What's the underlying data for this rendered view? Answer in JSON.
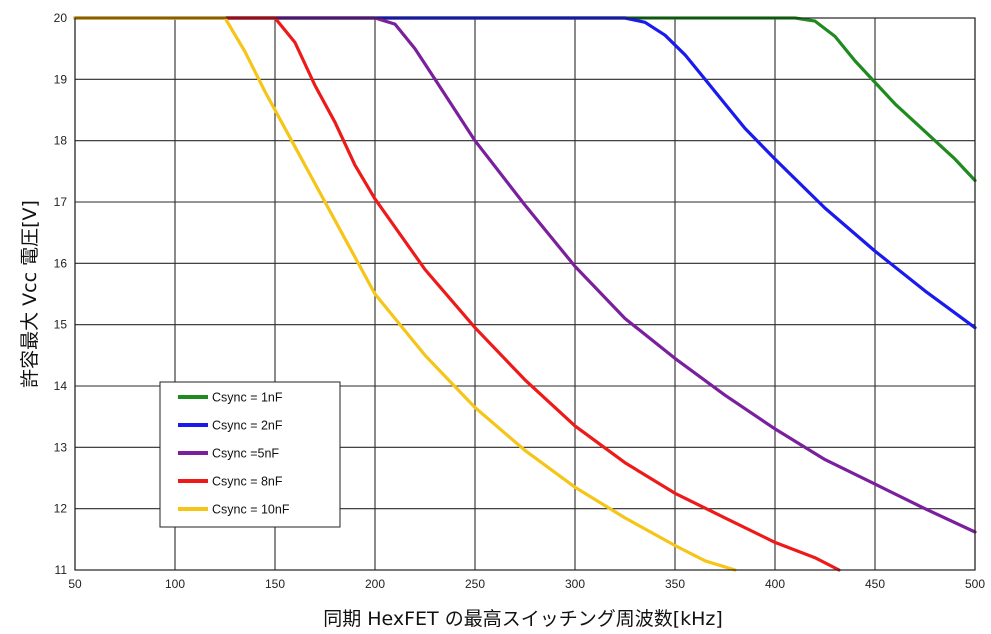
{
  "chart_data": {
    "type": "line",
    "xlabel": "同期 HexFET の最高スイッチング周波数[kHz]",
    "ylabel": "許容最大 Vcc 電圧[V]",
    "xlim": [
      50,
      500
    ],
    "ylim": [
      11,
      20
    ],
    "x_ticks": [
      50,
      100,
      150,
      200,
      250,
      300,
      350,
      400,
      450,
      500
    ],
    "y_ticks": [
      11,
      12,
      13,
      14,
      15,
      16,
      17,
      18,
      19,
      20
    ],
    "grid": true,
    "legend_position": "lower-left",
    "series": [
      {
        "name": "Csync = 1nF",
        "color": "#1f8a1f",
        "points": [
          [
            50,
            20
          ],
          [
            400,
            20
          ],
          [
            410,
            20
          ],
          [
            420,
            19.95
          ],
          [
            430,
            19.7
          ],
          [
            440,
            19.3
          ],
          [
            450,
            18.95
          ],
          [
            460,
            18.6
          ],
          [
            470,
            18.3
          ],
          [
            480,
            18.0
          ],
          [
            490,
            17.7
          ],
          [
            500,
            17.35
          ]
        ]
      },
      {
        "name": "Csync = 2nF",
        "color": "#1a1aee",
        "points": [
          [
            50,
            20
          ],
          [
            325,
            20
          ],
          [
            335,
            19.93
          ],
          [
            345,
            19.72
          ],
          [
            355,
            19.4
          ],
          [
            365,
            19.0
          ],
          [
            375,
            18.6
          ],
          [
            385,
            18.2
          ],
          [
            400,
            17.7
          ],
          [
            425,
            16.9
          ],
          [
            450,
            16.2
          ],
          [
            475,
            15.55
          ],
          [
            500,
            14.95
          ]
        ]
      },
      {
        "name": "Csync =5nF",
        "color": "#7a1f9e",
        "points": [
          [
            50,
            20
          ],
          [
            200,
            20
          ],
          [
            210,
            19.9
          ],
          [
            220,
            19.5
          ],
          [
            230,
            19.0
          ],
          [
            240,
            18.5
          ],
          [
            250,
            18.0
          ],
          [
            275,
            16.95
          ],
          [
            300,
            15.95
          ],
          [
            325,
            15.1
          ],
          [
            350,
            14.45
          ],
          [
            375,
            13.85
          ],
          [
            400,
            13.3
          ],
          [
            425,
            12.8
          ],
          [
            450,
            12.4
          ],
          [
            475,
            12.0
          ],
          [
            500,
            11.62
          ]
        ]
      },
      {
        "name": "Csync = 8nF",
        "color": "#ee1a1a",
        "points": [
          [
            50,
            20
          ],
          [
            150,
            20
          ],
          [
            160,
            19.6
          ],
          [
            170,
            18.9
          ],
          [
            180,
            18.3
          ],
          [
            190,
            17.6
          ],
          [
            200,
            17.05
          ],
          [
            225,
            15.9
          ],
          [
            250,
            14.95
          ],
          [
            275,
            14.1
          ],
          [
            300,
            13.35
          ],
          [
            325,
            12.75
          ],
          [
            350,
            12.25
          ],
          [
            375,
            11.85
          ],
          [
            400,
            11.45
          ],
          [
            420,
            11.2
          ],
          [
            432,
            11.0
          ]
        ]
      },
      {
        "name": "Csync = 10nF",
        "color": "#f5c518",
        "points": [
          [
            50,
            20
          ],
          [
            125,
            20
          ],
          [
            135,
            19.45
          ],
          [
            145,
            18.8
          ],
          [
            150,
            18.5
          ],
          [
            160,
            17.9
          ],
          [
            170,
            17.3
          ],
          [
            185,
            16.4
          ],
          [
            200,
            15.5
          ],
          [
            225,
            14.5
          ],
          [
            250,
            13.65
          ],
          [
            275,
            12.95
          ],
          [
            300,
            12.35
          ],
          [
            325,
            11.85
          ],
          [
            350,
            11.4
          ],
          [
            365,
            11.15
          ],
          [
            380,
            11.0
          ]
        ]
      }
    ]
  }
}
